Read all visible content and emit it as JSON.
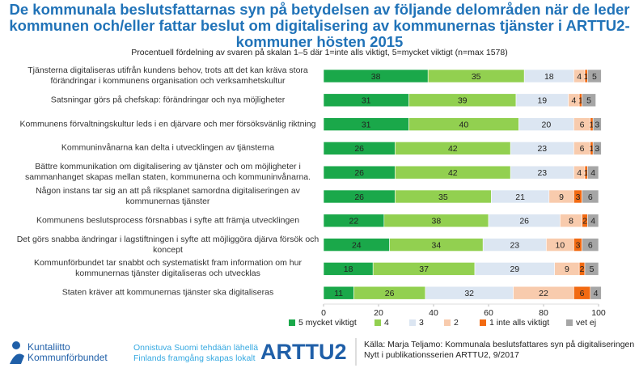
{
  "chart_data": {
    "type": "stacked-barh",
    "title": "De kommunala beslutsfattarnas syn på betydelsen av följande delområden när de leder kommunen och/eller fattar beslut om digitalisering av kommunernas tjänster i ARTTU2-kommuner hösten 2015",
    "subtitle": "Procentuell fördelning av svaren på skalan 1–5 där 1=inte alls viktigt, 5=mycket viktigt (n=max 1578)",
    "categories": [
      "Tjänsterna digitaliseras utifrån kundens behov, trots att det kan kräva stora förändringar i kommunens organisation och verksamhetskultur",
      "Satsningar görs på chefskap: förändringar och nya möjligheter",
      "Kommunens förvaltningskultur leds i en djärvare och mer försöksvänlig riktning",
      "Kommuninvånarna kan delta i utvecklingen av tjänsterna",
      "Bättre kommunikation om digitalisering av tjänster och om möjligheter i sammanhanget skapas mellan staten, kommunerna och kommuninvånarna.",
      "Någon instans tar sig an att på riksplanet samordna digitaliseringen av kommunernas tjänster",
      "Kommunens beslutsprocess försnabbas i syfte att främja utvecklingen",
      "Det görs snabba ändringar i lagstiftningen i syfte att möjliggöra djärva försök och koncept",
      "Kommunförbundet tar snabbt och systematiskt fram information om hur kommunernas tjänster digitaliseras och utvecklas",
      "Staten kräver att kommunernas tjänster ska digitaliseras"
    ],
    "series": [
      {
        "name": "5 mycket viktigt",
        "color": "#1aa84a",
        "values": [
          38,
          31,
          31,
          26,
          26,
          26,
          22,
          24,
          18,
          11
        ]
      },
      {
        "name": "4",
        "color": "#92d050",
        "values": [
          35,
          39,
          40,
          42,
          42,
          35,
          38,
          34,
          37,
          26
        ]
      },
      {
        "name": "3",
        "color": "#dce6f2",
        "values": [
          18,
          19,
          20,
          23,
          23,
          21,
          26,
          23,
          29,
          32
        ]
      },
      {
        "name": "2",
        "color": "#f8cbad",
        "values": [
          4,
          4,
          6,
          6,
          4,
          9,
          8,
          10,
          9,
          22
        ]
      },
      {
        "name": "1 inte alls viktigt",
        "color": "#f26a12",
        "values": [
          1,
          1,
          1,
          1,
          1,
          3,
          2,
          3,
          2,
          6
        ]
      },
      {
        "name": "vet ej",
        "color": "#a6a6a6",
        "values": [
          5,
          5,
          3,
          3,
          4,
          6,
          4,
          6,
          5,
          4
        ]
      }
    ],
    "xlim": [
      0,
      100
    ],
    "xticks": [
      0,
      20,
      40,
      60,
      80,
      100
    ],
    "legend": "bottom"
  },
  "footer": {
    "logo_line1": "Kuntaliitto",
    "logo_line2": "Kommunförbundet",
    "slogan_fi": "Onnistuva Suomi tehdään lähellä",
    "slogan_sv": "Finlands framgång skapas lokalt",
    "program": "ARTTU2",
    "source": "Källa: Marja Teljamo: Kommunala beslutsfattares syn på digitaliseringen",
    "series_note": "Nytt i publikationsserien ARTTU2, 9/2017"
  }
}
